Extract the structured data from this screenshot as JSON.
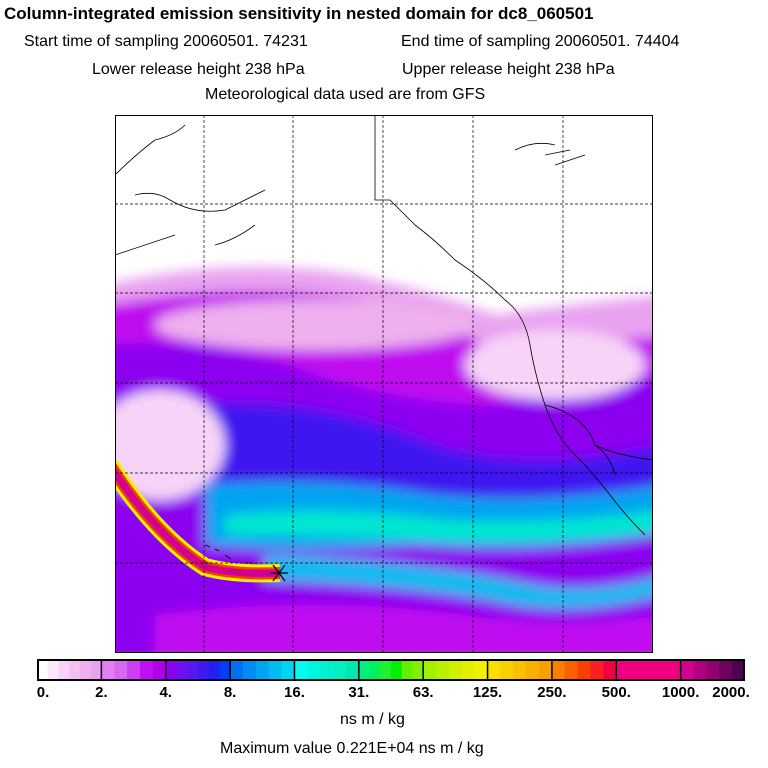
{
  "header": {
    "title": "Column-integrated emission sensitivity in nested domain for dc8_060501",
    "start_time": "Start time of sampling 20060501. 74231",
    "end_time": "End time of sampling 20060501. 74404",
    "lower_release": "Lower release height  238 hPa",
    "upper_release": "Upper release height  238 hPa",
    "met_data": "Meteorological data used are from GFS"
  },
  "colorbar": {
    "tick_labels": [
      "0.",
      "2.",
      "4.",
      "8.",
      "16.",
      "31.",
      "63.",
      "125.",
      "250.",
      "500.",
      "1000.",
      "2000."
    ],
    "interval_colors": [
      [
        "#ffffff",
        "#fbe8fb",
        "#f7d4f7",
        "#f2c0f2",
        "#eeb0ee",
        "#e9a2f0"
      ],
      [
        "#e080f2",
        "#d868f2",
        "#cc40f2",
        "#c010f0",
        "#b000e8"
      ],
      [
        "#8c00f0",
        "#7010f0",
        "#5818f0",
        "#4018f0",
        "#2020f0",
        "#0040f0"
      ],
      [
        "#0070f0",
        "#008cf0",
        "#00a4f0",
        "#00bcf0",
        "#00d4f0"
      ],
      [
        "#00fcf0",
        "#00f4e0",
        "#00f0d0",
        "#00f0c0",
        "#00e8b0"
      ],
      [
        "#00f080",
        "#00f060",
        "#20f030",
        "#00f000",
        "#60f000",
        "#80f000"
      ],
      [
        "#a0f000",
        "#b8f000",
        "#d0f000",
        "#e0f000",
        "#f0f000"
      ],
      [
        "#f8e000",
        "#f8d000",
        "#f8c000",
        "#f8b000",
        "#f8a000"
      ],
      [
        "#f88000",
        "#f86000",
        "#f84000",
        "#f82020",
        "#f00040"
      ],
      [
        "#f00080",
        "#f00080",
        "#f00080",
        "#f00080",
        "#f00080"
      ],
      [
        "#d00090",
        "#b00080",
        "#900070",
        "#700060",
        "#500050"
      ]
    ],
    "unit": "ns m / kg",
    "max_value": "Maximum value  0.221E+04 ns m / kg"
  }
}
